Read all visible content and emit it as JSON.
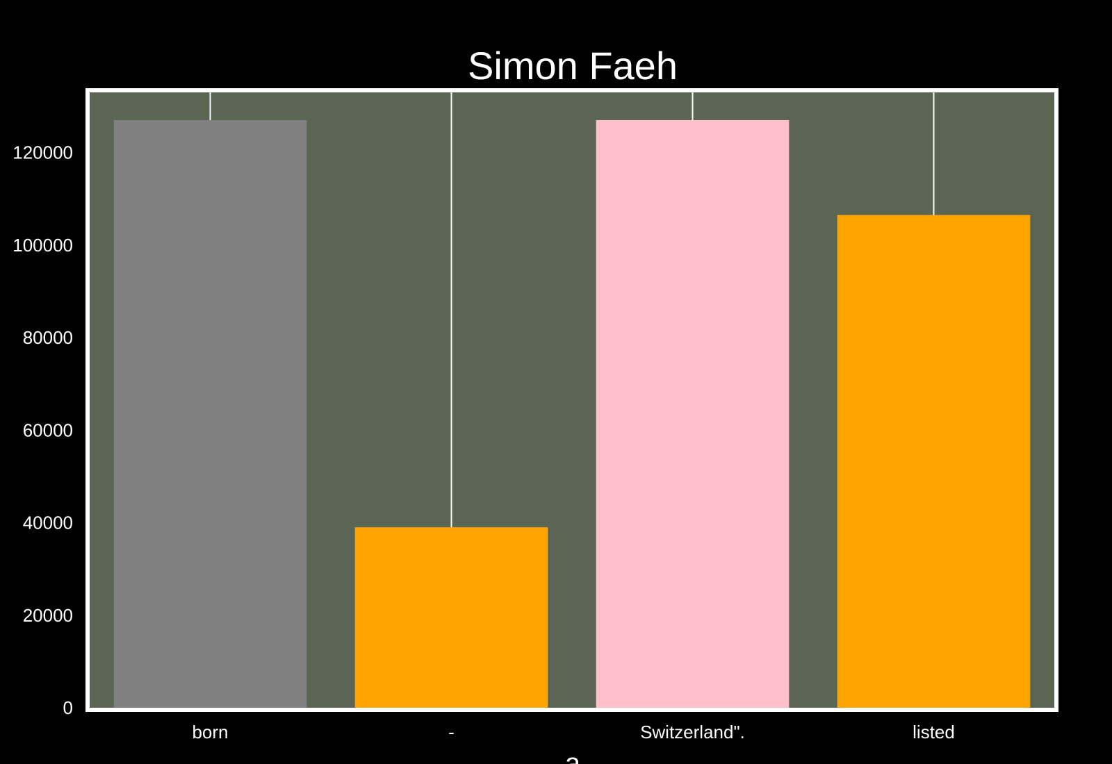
{
  "chart_data": {
    "type": "bar",
    "title": "Simon Faeh",
    "xlabel": "a",
    "ylabel": "",
    "categories": [
      "born",
      "-",
      "Switzerland\".",
      "listed"
    ],
    "values": [
      127000,
      39000,
      127000,
      106500
    ],
    "bar_colors": [
      "#808080",
      "#FFA500",
      "#FFC0CB",
      "#FFA500"
    ],
    "ylim": [
      0,
      133000
    ],
    "yticks": [
      0,
      20000,
      40000,
      60000,
      80000,
      100000,
      120000
    ],
    "grid": "vertical lines at category positions",
    "plot_background": "#5B6553",
    "page_background": "#000000",
    "frame_color": "#FFFFFF"
  }
}
